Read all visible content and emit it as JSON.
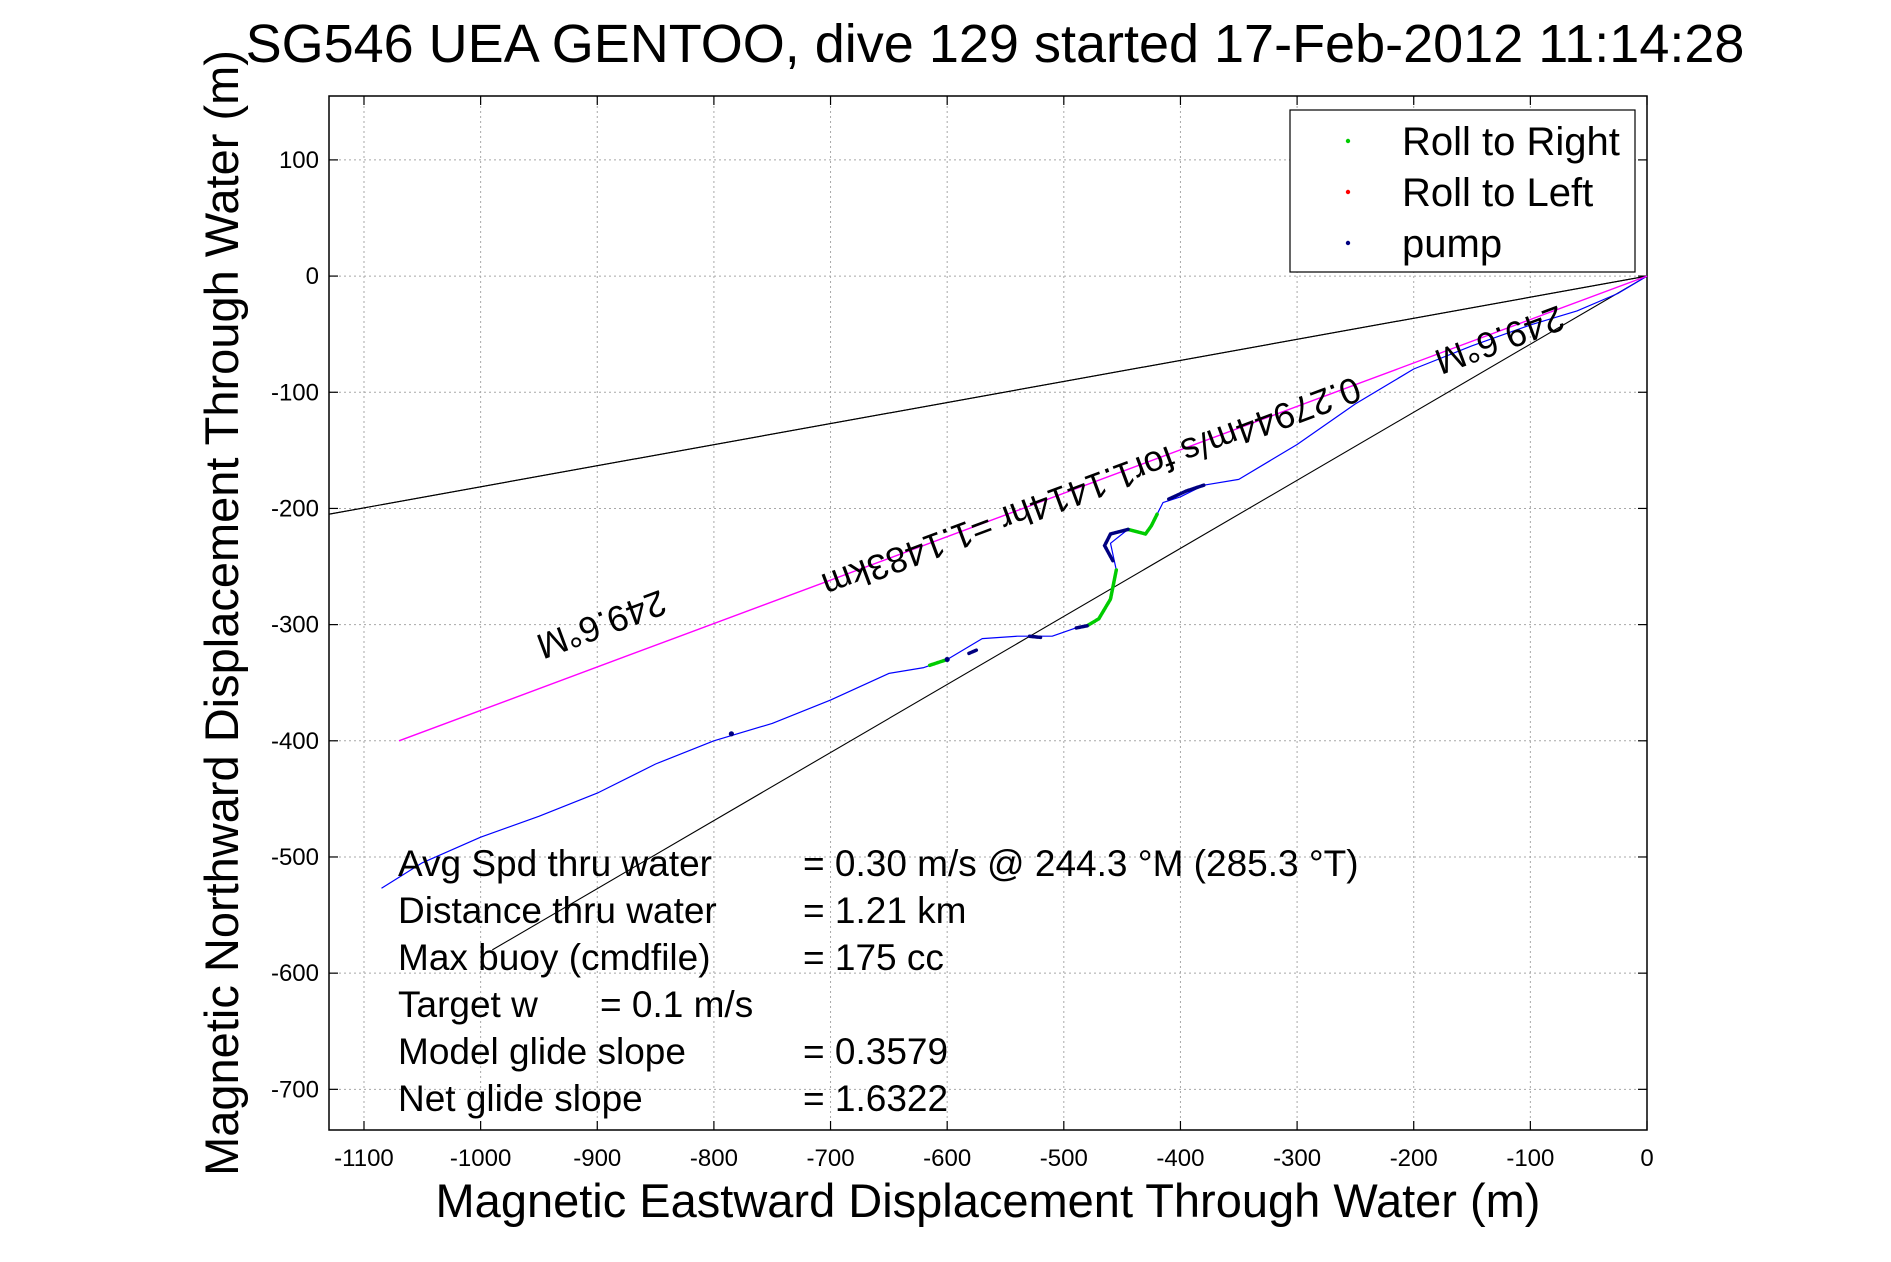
{
  "chart_data": {
    "type": "line",
    "title": "SG546 UEA GENTOO, dive 129 started 17-Feb-2012 11:14:28",
    "xlabel": "Magnetic Eastward Displacement Through Water (m)",
    "ylabel": "Magnetic Northward Displacement Through Water (m)",
    "xlim": [
      -1130,
      0
    ],
    "ylim": [
      -735,
      155
    ],
    "xticks": [
      -1100,
      -1000,
      -900,
      -800,
      -700,
      -600,
      -500,
      -400,
      -300,
      -200,
      -100,
      0
    ],
    "yticks": [
      100,
      0,
      -100,
      -200,
      -300,
      -400,
      -500,
      -600,
      -700
    ],
    "grid": true,
    "legend": {
      "placement": "top-right",
      "entries": [
        {
          "label": "Roll to Right",
          "color": "#00cc00"
        },
        {
          "label": "Roll to Left",
          "color": "#ff0000"
        },
        {
          "label": "pump",
          "color": "#000080"
        }
      ]
    },
    "series": [
      {
        "color": "#0000ff",
        "x": [
          0,
          -25,
          -60,
          -100,
          -150,
          -200,
          -250,
          -300,
          -350,
          -380,
          -400,
          -415,
          -420,
          -430,
          -445,
          -460,
          -455,
          -460,
          -470,
          -480,
          -490,
          -510,
          -540,
          -570,
          -600,
          -620,
          -650,
          -700,
          -750,
          -800,
          -850,
          -900,
          -950,
          -1000,
          -1050,
          -1085
        ],
        "y": [
          0,
          -15,
          -30,
          -42,
          -60,
          -80,
          -110,
          -145,
          -175,
          -180,
          -190,
          -195,
          -205,
          -222,
          -218,
          -230,
          -253,
          -278,
          -295,
          -301,
          -303,
          -310,
          -310,
          -312,
          -330,
          -337,
          -342,
          -365,
          -385,
          -400,
          -420,
          -445,
          -465,
          -483,
          -505,
          -527
        ]
      },
      {
        "color": "#ff00ff",
        "x": [
          0,
          -1070
        ],
        "y": [
          0,
          -400
        ]
      }
    ],
    "reference_lines": [
      {
        "color": "#000000",
        "x": [
          0,
          -1130
        ],
        "y": [
          0,
          -205
        ]
      },
      {
        "color": "#000000",
        "x": [
          0,
          -1130
        ],
        "y": [
          0,
          -205
        ]
      },
      {
        "color": "#000000",
        "x": [
          0,
          -990
        ],
        "y": [
          0,
          -580
        ]
      }
    ],
    "markers": {
      "roll_right": {
        "color": "#00cc00",
        "segments": [
          {
            "x": [
              -420,
              -425,
              -430,
              -445
            ],
            "y": [
              -205,
              -215,
              -222,
              -218
            ]
          },
          {
            "x": [
              -455,
              -460,
              -470,
              -480
            ],
            "y": [
              -253,
              -278,
              -295,
              -301
            ]
          },
          {
            "x": [
              -600,
              -615
            ],
            "y": [
              -330,
              -335
            ]
          }
        ]
      },
      "pump": {
        "color": "#000080",
        "segments": [
          {
            "x": [
              -380,
              -395,
              -410
            ],
            "y": [
              -180,
              -185,
              -192
            ]
          },
          {
            "x": [
              -445,
              -460,
              -465,
              -458
            ],
            "y": [
              -218,
              -222,
              -232,
              -245
            ]
          },
          {
            "x": [
              -480,
              -490
            ],
            "y": [
              -301,
              -303
            ]
          },
          {
            "x": [
              -520,
              -530
            ],
            "y": [
              -311,
              -310
            ]
          },
          {
            "x": [
              -575,
              -582
            ],
            "y": [
              -322,
              -325
            ]
          }
        ],
        "points": [
          {
            "x": -785,
            "y": -394
          },
          {
            "x": -600,
            "y": -330
          }
        ]
      }
    },
    "annotations": [
      {
        "text": "249.6°M",
        "x": -130,
        "y": -45,
        "angle": 180
      },
      {
        "text": "0.27944m/s for1.1414hr =1.1483km",
        "x": -480,
        "y": -172,
        "angle": 180
      },
      {
        "text": "249.6°M",
        "x": -900,
        "y": -290,
        "angle": 180
      }
    ],
    "stats": [
      {
        "label": "Avg Spd thru water",
        "value": "=  0.30 m/s @ 244.3 °M (285.3 °T)"
      },
      {
        "label": "Distance thru water",
        "value": "=  1.21 km"
      },
      {
        "label": "Max buoy (cmdfile)",
        "value": "= 175 cc"
      },
      {
        "label": "Target w",
        "value": "= 0.1 m/s"
      },
      {
        "label": "Model glide slope",
        "value": "= 0.3579"
      },
      {
        "label": "Net glide slope",
        "value": "= 1.6322"
      }
    ]
  }
}
